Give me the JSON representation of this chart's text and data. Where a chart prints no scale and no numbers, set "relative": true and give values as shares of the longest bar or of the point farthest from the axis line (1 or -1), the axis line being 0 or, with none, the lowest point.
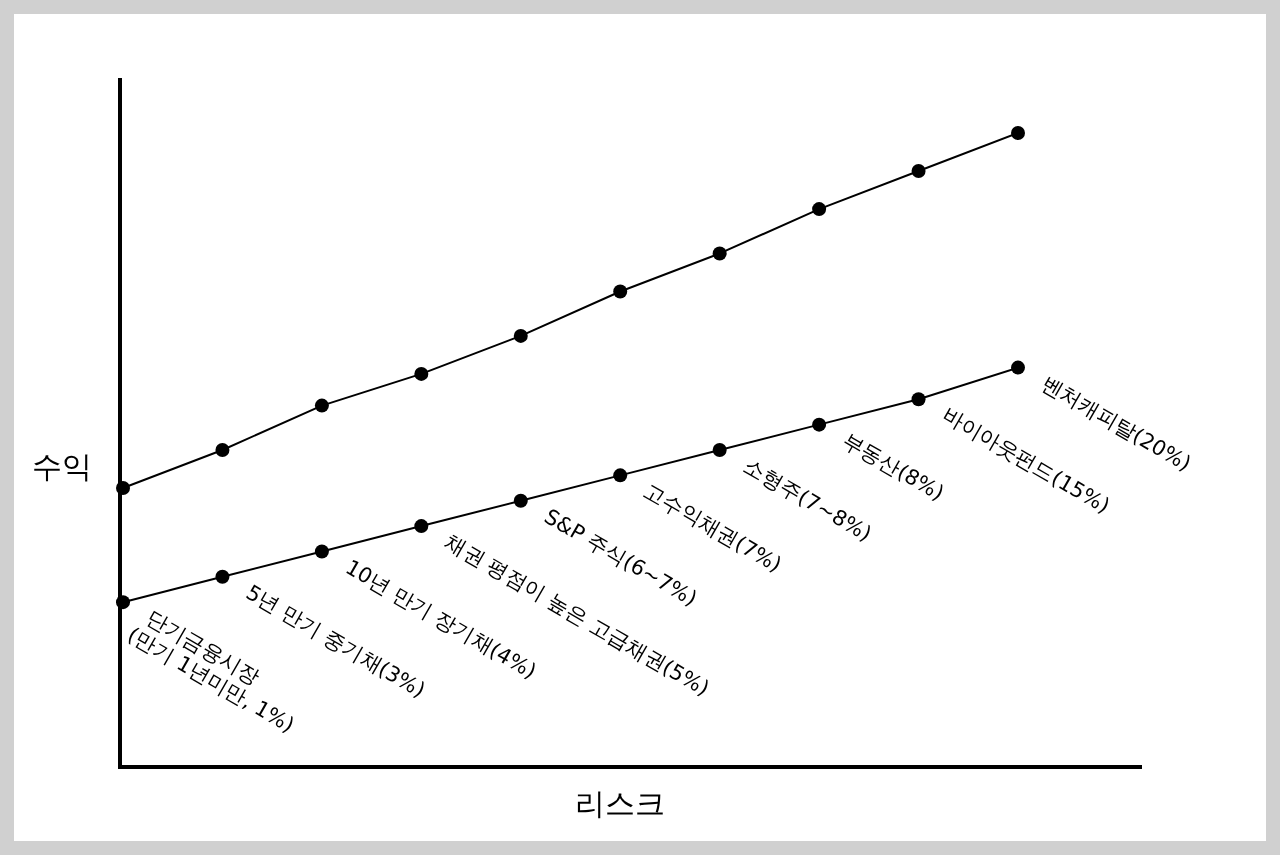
{
  "chart_data": {
    "type": "line",
    "relative": true,
    "xlabel": "리스크",
    "ylabel": "수익",
    "marker": "circle",
    "categories": [
      null,
      null,
      null,
      null,
      null,
      null,
      null,
      null,
      null,
      null
    ],
    "series": [
      {
        "color": "#000000",
        "values": [
          0.44,
          0.5,
          0.57,
          0.62,
          0.68,
          0.75,
          0.81,
          0.88,
          0.94,
          1.0
        ]
      },
      {
        "color": "#000000",
        "values": [
          0.26,
          0.3,
          0.34,
          0.38,
          0.42,
          0.46,
          0.5,
          0.54,
          0.58,
          0.63
        ]
      }
    ],
    "annotations": [
      "단기금융시장\n(만기 1년미만, 1%)",
      "5년 만기 중기채(3%)",
      "10년 만기 장기채(4%)",
      "채권 평점이 높은 고급채권(5%)",
      "S&P 주식(6~7%)",
      "고수익채권(7%)",
      "소형주(7~8%)",
      "부동산(8%)",
      "바이아웃펀드(15%)",
      "벤처캐피탈(20%)"
    ]
  }
}
